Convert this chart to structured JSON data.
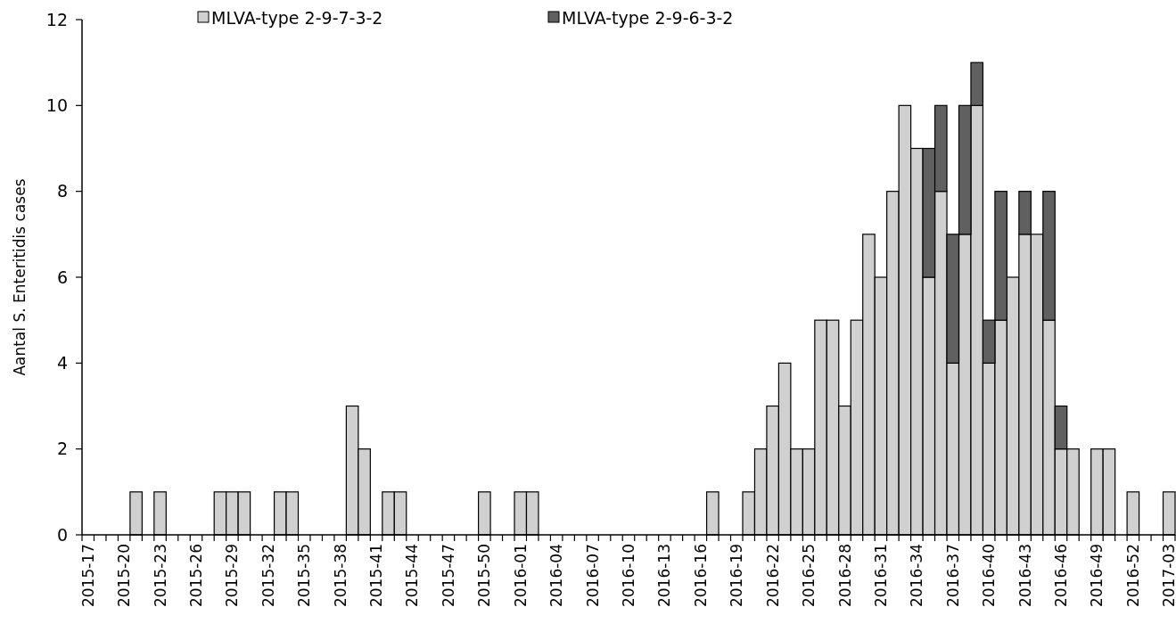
{
  "chart_data": {
    "type": "bar",
    "stacked": true,
    "ylabel": "Aantal S. Enteritidis cases",
    "ylim": [
      0,
      12
    ],
    "yticks": [
      0,
      2,
      4,
      6,
      8,
      10,
      12
    ],
    "grid": false,
    "legend": "top",
    "categories": [
      "2015-17",
      null,
      null,
      "2015-20",
      null,
      null,
      "2015-23",
      null,
      null,
      "2015-26",
      null,
      null,
      "2015-29",
      null,
      null,
      "2015-32",
      null,
      null,
      "2015-35",
      null,
      null,
      "2015-38",
      null,
      null,
      "2015-41",
      null,
      null,
      "2015-44",
      null,
      null,
      "2015-47",
      null,
      null,
      "2015-50",
      null,
      null,
      "2016-01",
      null,
      null,
      "2016-04",
      null,
      null,
      "2016-07",
      null,
      null,
      "2016-10",
      null,
      null,
      "2016-13",
      null,
      null,
      "2016-16",
      null,
      null,
      "2016-19",
      null,
      null,
      "2016-22",
      null,
      null,
      "2016-25",
      null,
      null,
      "2016-28",
      null,
      null,
      "2016-31",
      null,
      null,
      "2016-34",
      null,
      null,
      "2016-37",
      null,
      null,
      "2016-40",
      null,
      null,
      "2016-43",
      null,
      null,
      "2016-46",
      null,
      null,
      "2016-49",
      null,
      null,
      "2016-52",
      null,
      null,
      "2017-03"
    ],
    "series": [
      {
        "name": "MLVA-type 2-9-7-3-2",
        "color": "#d0d0d0",
        "values": [
          0,
          0,
          0,
          0,
          1,
          0,
          1,
          0,
          0,
          0,
          0,
          1,
          1,
          1,
          0,
          0,
          1,
          1,
          0,
          0,
          0,
          0,
          3,
          2,
          0,
          1,
          1,
          0,
          0,
          0,
          0,
          0,
          0,
          1,
          0,
          0,
          1,
          1,
          0,
          0,
          0,
          0,
          0,
          0,
          0,
          0,
          0,
          0,
          0,
          0,
          0,
          0,
          1,
          0,
          0,
          1,
          2,
          3,
          4,
          2,
          2,
          5,
          5,
          3,
          5,
          7,
          6,
          8,
          10,
          9,
          6,
          8,
          4,
          7,
          10,
          4,
          5,
          6,
          7,
          7,
          5,
          2,
          2,
          0,
          2,
          2,
          0,
          1,
          0,
          0,
          1
        ]
      },
      {
        "name": "MLVA-type 2-9-6-3-2",
        "color": "#606060",
        "values": [
          0,
          0,
          0,
          0,
          0,
          0,
          0,
          0,
          0,
          0,
          0,
          0,
          0,
          0,
          0,
          0,
          0,
          0,
          0,
          0,
          0,
          0,
          0,
          0,
          0,
          0,
          0,
          0,
          0,
          0,
          0,
          0,
          0,
          0,
          0,
          0,
          0,
          0,
          0,
          0,
          0,
          0,
          0,
          0,
          0,
          0,
          0,
          0,
          0,
          0,
          0,
          0,
          0,
          0,
          0,
          0,
          0,
          0,
          0,
          0,
          0,
          0,
          0,
          0,
          0,
          0,
          0,
          0,
          0,
          0,
          3,
          2,
          3,
          3,
          1,
          1,
          3,
          0,
          1,
          0,
          3,
          1,
          0,
          0,
          0,
          0,
          0,
          0,
          0,
          0,
          0
        ]
      }
    ]
  }
}
